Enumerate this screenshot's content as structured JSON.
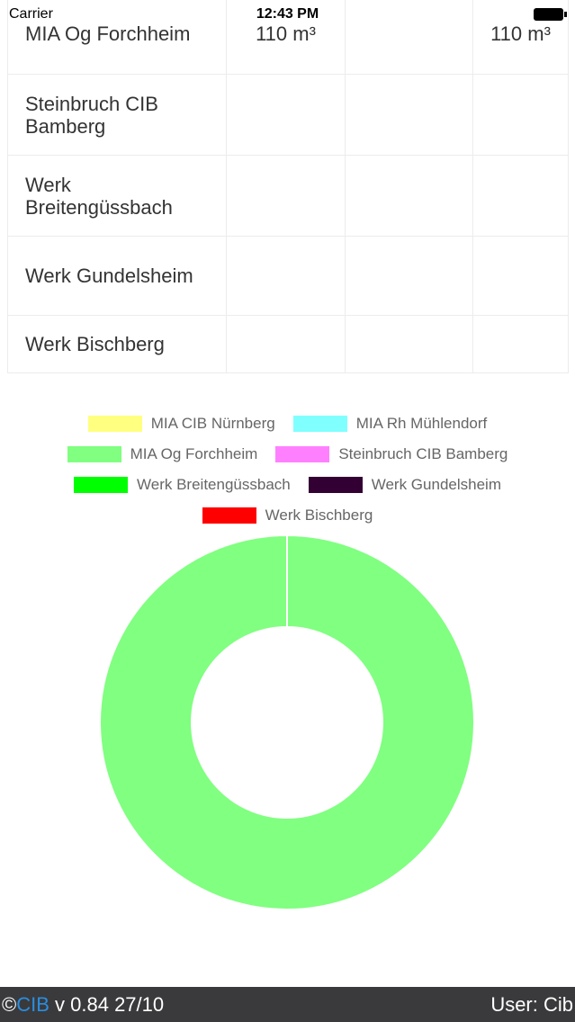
{
  "status_bar": {
    "carrier": "Carrier",
    "time": "12:43 PM"
  },
  "table": {
    "rows": [
      [
        "MIA Og Forchheim",
        "110 m³",
        null,
        "110 m³"
      ],
      [
        "Steinbruch CIB Bamberg",
        null,
        null,
        null
      ],
      [
        "Werk Breitengüssbach",
        null,
        null,
        null
      ],
      [
        "Werk Gundelsheim",
        null,
        null,
        null
      ],
      [
        "Werk Bischberg",
        null,
        null,
        null
      ]
    ]
  },
  "chart_data": {
    "type": "doughnut",
    "categories": [
      "MIA CIB Nürnberg",
      "MIA Rh Mühlendorf",
      "MIA Og Forchheim",
      "Steinbruch CIB Bamberg",
      "Werk Breitengüssbach",
      "Werk Gundelsheim",
      "Werk Bischberg"
    ],
    "colors": [
      "#ffff80",
      "#80ffff",
      "#80ff80",
      "#ff80ff",
      "#00ff00",
      "#330033",
      "#ff0000"
    ],
    "values": [
      0,
      0,
      110,
      0,
      0,
      0,
      0
    ]
  },
  "footer": {
    "copyright": "©",
    "brand": "CIB",
    "version": "v 0.84 27/10",
    "user": "User: Cib"
  }
}
